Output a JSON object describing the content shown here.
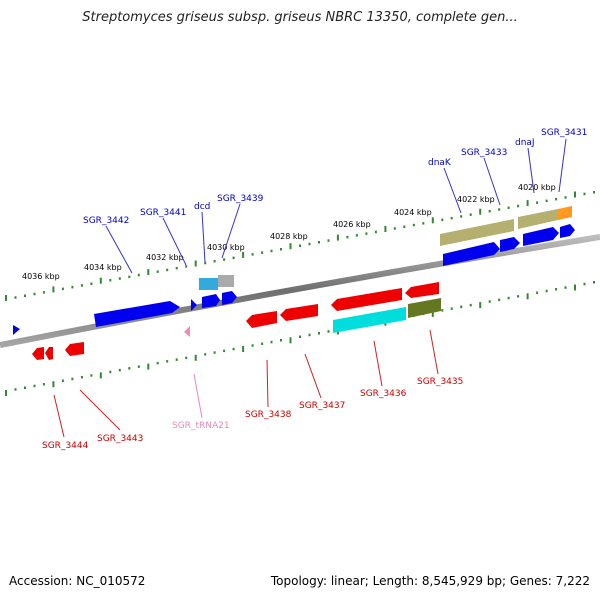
{
  "title": "Streptomyces griseus subsp. griseus NBRC 13350, complete gen...",
  "footer": {
    "accession": "Accession: NC_010572",
    "topology": "Topology: linear; Length: 8,545,929 bp; Genes: 7,222"
  },
  "colors": {
    "forward_label": "#0000cc",
    "reverse_label": "#cc0000",
    "trna_label": "#ee88bb",
    "tick_green": "#338833",
    "genome_line": "#888888"
  },
  "scale": {
    "labels": [
      "4036 kbp",
      "4034 kbp",
      "4032 kbp",
      "4030 kbp",
      "4028 kbp",
      "4026 kbp",
      "4024 kbp",
      "4022 kbp",
      "4020 kbp"
    ]
  },
  "genes": {
    "top": [
      "SGR_3442",
      "SGR_3441",
      "dcd",
      "SGR_3439",
      "dnaK",
      "SGR_3433",
      "dnaJ",
      "SGR_3431"
    ],
    "bottom": [
      "SGR_3444",
      "SGR_3443",
      "SGR_tRNA21",
      "SGR_3438",
      "SGR_3437",
      "SGR_3436",
      "SGR_3435"
    ]
  }
}
